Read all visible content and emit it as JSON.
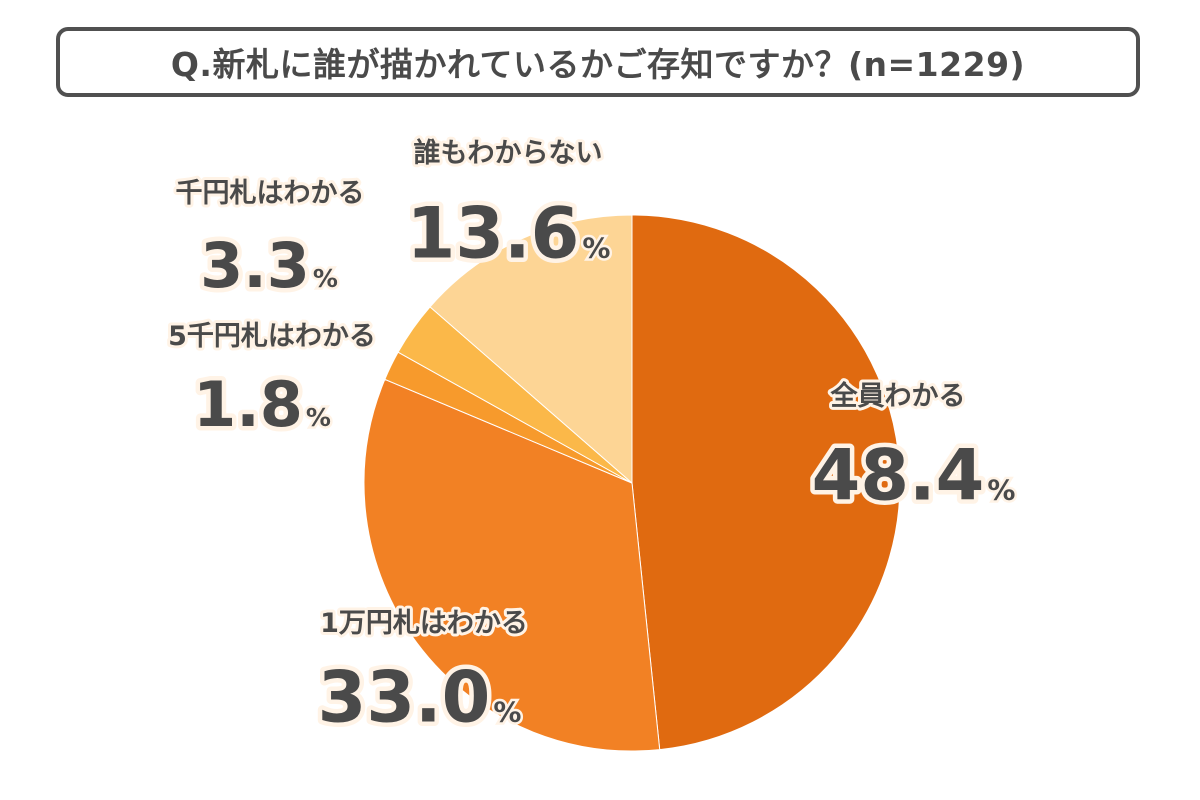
{
  "title": "Q.新札に誰が描かれているかご存知ですか？(n=1229)",
  "chart_data": {
    "type": "pie",
    "title": "Q.新札に誰が描かれているかご存知ですか？(n=1229)",
    "unit": "%",
    "start": "12 o'clock",
    "direction": "clockwise",
    "slices": [
      {
        "label": "全員わかる",
        "value": 48.4,
        "value_text": "48.4",
        "color": "#E06A10"
      },
      {
        "label": "1万円札はわかる",
        "value": 33.0,
        "value_text": "33.0",
        "color": "#F28124"
      },
      {
        "label": "5千円札はわかる",
        "value": 1.8,
        "value_text": "1.8",
        "color": "#F79A2C"
      },
      {
        "label": "千円札はわかる",
        "value": 3.3,
        "value_text": "3.3",
        "color": "#FBB849"
      },
      {
        "label": "誰もわからない",
        "value": 13.6,
        "value_text": "13.6",
        "color": "#FDD595"
      }
    ],
    "label_colors": {
      "text": "#4A4A4A",
      "outline": "#FFF3E6"
    }
  }
}
